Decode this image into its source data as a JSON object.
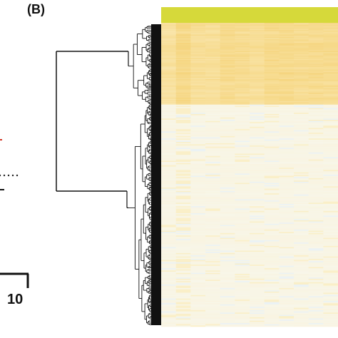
{
  "panel_label": "(B)",
  "scale_bar": {
    "label": "10"
  },
  "colors": {
    "annotation_bar": "#d6d93a",
    "high": "#f5d47c",
    "mid": "#fbedc0",
    "low": "#f8f6ea",
    "cool": "#e6f0f8",
    "dendrogram": "#111111",
    "left_marker": "#d23a2a"
  },
  "chart_data": {
    "type": "heatmap",
    "title": "",
    "xlabel": "",
    "ylabel": "",
    "columns": 12,
    "row_clusters": [
      {
        "rows": 70,
        "level": "high"
      },
      {
        "rows": 190,
        "level": "low"
      }
    ],
    "dendrogram": {
      "clusters": 2
    },
    "annotation_bar": {
      "groups": 1
    },
    "legend": "none",
    "grid": false
  }
}
